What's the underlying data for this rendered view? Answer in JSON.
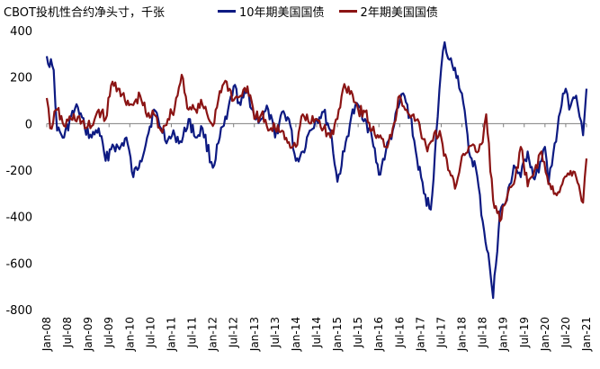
{
  "chart_data": {
    "type": "line",
    "title": "CBOT投机性合约净头寸，千张",
    "ylim": [
      -800,
      400
    ],
    "yticks": [
      400,
      200,
      0,
      -200,
      -400,
      -600,
      -800
    ],
    "x_tick_labels": [
      "Jan-08",
      "Jul-08",
      "Jan-09",
      "Jul-09",
      "Jan-10",
      "Jul-10",
      "Jan-11",
      "Jul-11",
      "Jan-12",
      "Jul-12",
      "Jan-13",
      "Jul-13",
      "Jan-14",
      "Jul-14",
      "Jan-15",
      "Jul-15",
      "Jan-16",
      "Jul-16",
      "Jan-17",
      "Jul-17",
      "Jan-18",
      "Jul-18",
      "Jan-19",
      "Jul-19",
      "Jan-20",
      "Jul-20",
      "Jan-21"
    ],
    "x_range": [
      "2008-01",
      "2021-01"
    ],
    "grid": false,
    "legend_position": "top",
    "series": [
      {
        "name": "10年期美国国债",
        "color": "#0d1a82",
        "points": [
          [
            "2008-01",
            290
          ],
          [
            "2008-03",
            230
          ],
          [
            "2008-04",
            -30
          ],
          [
            "2008-06",
            -60
          ],
          [
            "2008-08",
            30
          ],
          [
            "2008-10",
            70
          ],
          [
            "2008-12",
            -20
          ],
          [
            "2009-02",
            -60
          ],
          [
            "2009-04",
            -20
          ],
          [
            "2009-06",
            -160
          ],
          [
            "2009-08",
            -90
          ],
          [
            "2009-10",
            -110
          ],
          [
            "2009-12",
            -60
          ],
          [
            "2010-02",
            -230
          ],
          [
            "2010-04",
            -160
          ],
          [
            "2010-06",
            -60
          ],
          [
            "2010-08",
            60
          ],
          [
            "2010-10",
            -20
          ],
          [
            "2010-12",
            -70
          ],
          [
            "2011-02",
            -50
          ],
          [
            "2011-04",
            -80
          ],
          [
            "2011-06",
            20
          ],
          [
            "2011-08",
            -60
          ],
          [
            "2011-10",
            -20
          ],
          [
            "2012-01",
            -190
          ],
          [
            "2012-03",
            -60
          ],
          [
            "2012-05",
            20
          ],
          [
            "2012-07",
            160
          ],
          [
            "2012-09",
            80
          ],
          [
            "2012-11",
            140
          ],
          [
            "2013-01",
            30
          ],
          [
            "2013-03",
            20
          ],
          [
            "2013-05",
            60
          ],
          [
            "2013-07",
            -60
          ],
          [
            "2013-09",
            50
          ],
          [
            "2013-11",
            20
          ],
          [
            "2014-01",
            -160
          ],
          [
            "2014-03",
            -120
          ],
          [
            "2014-05",
            -30
          ],
          [
            "2014-07",
            20
          ],
          [
            "2014-09",
            50
          ],
          [
            "2014-11",
            -30
          ],
          [
            "2015-01",
            -250
          ],
          [
            "2015-03",
            -120
          ],
          [
            "2015-05",
            30
          ],
          [
            "2015-07",
            80
          ],
          [
            "2015-09",
            20
          ],
          [
            "2015-11",
            -60
          ],
          [
            "2016-01",
            -220
          ],
          [
            "2016-03",
            -120
          ],
          [
            "2016-05",
            -30
          ],
          [
            "2016-07",
            90
          ],
          [
            "2016-08",
            130
          ],
          [
            "2016-10",
            30
          ],
          [
            "2016-12",
            -150
          ],
          [
            "2017-02",
            -300
          ],
          [
            "2017-04",
            -370
          ],
          [
            "2017-06",
            30
          ],
          [
            "2017-07",
            240
          ],
          [
            "2017-08",
            350
          ],
          [
            "2017-09",
            280
          ],
          [
            "2017-11",
            240
          ],
          [
            "2018-01",
            130
          ],
          [
            "2018-03",
            -120
          ],
          [
            "2018-05",
            -190
          ],
          [
            "2018-07",
            -420
          ],
          [
            "2018-09",
            -610
          ],
          [
            "2018-10",
            -750
          ],
          [
            "2018-12",
            -380
          ],
          [
            "2019-02",
            -330
          ],
          [
            "2019-04",
            -180
          ],
          [
            "2019-06",
            -230
          ],
          [
            "2019-08",
            -120
          ],
          [
            "2019-10",
            -240
          ],
          [
            "2019-12",
            -160
          ],
          [
            "2020-01",
            -100
          ],
          [
            "2020-02",
            -260
          ],
          [
            "2020-03",
            -180
          ],
          [
            "2020-05",
            30
          ],
          [
            "2020-07",
            150
          ],
          [
            "2020-08",
            60
          ],
          [
            "2020-10",
            120
          ],
          [
            "2020-11",
            30
          ],
          [
            "2020-12",
            -50
          ],
          [
            "2021-01",
            150
          ]
        ]
      },
      {
        "name": "2年期美国国债",
        "color": "#8b1414",
        "points": [
          [
            "2008-01",
            110
          ],
          [
            "2008-02",
            -20
          ],
          [
            "2008-04",
            60
          ],
          [
            "2008-06",
            -10
          ],
          [
            "2008-08",
            20
          ],
          [
            "2008-10",
            30
          ],
          [
            "2008-12",
            -20
          ],
          [
            "2009-02",
            -10
          ],
          [
            "2009-04",
            60
          ],
          [
            "2009-06",
            20
          ],
          [
            "2009-08",
            180
          ],
          [
            "2009-10",
            150
          ],
          [
            "2009-12",
            80
          ],
          [
            "2010-02",
            80
          ],
          [
            "2010-04",
            120
          ],
          [
            "2010-06",
            30
          ],
          [
            "2010-08",
            40
          ],
          [
            "2010-10",
            -30
          ],
          [
            "2010-12",
            20
          ],
          [
            "2011-02",
            70
          ],
          [
            "2011-04",
            210
          ],
          [
            "2011-06",
            60
          ],
          [
            "2011-08",
            60
          ],
          [
            "2011-10",
            80
          ],
          [
            "2012-01",
            -10
          ],
          [
            "2012-03",
            140
          ],
          [
            "2012-05",
            180
          ],
          [
            "2012-07",
            100
          ],
          [
            "2012-09",
            120
          ],
          [
            "2012-11",
            160
          ],
          [
            "2013-01",
            20
          ],
          [
            "2013-03",
            40
          ],
          [
            "2013-05",
            -30
          ],
          [
            "2013-07",
            -20
          ],
          [
            "2013-09",
            -30
          ],
          [
            "2013-11",
            -80
          ],
          [
            "2014-01",
            -100
          ],
          [
            "2014-03",
            40
          ],
          [
            "2014-05",
            0
          ],
          [
            "2014-07",
            20
          ],
          [
            "2014-09",
            -20
          ],
          [
            "2014-11",
            -60
          ],
          [
            "2015-01",
            20
          ],
          [
            "2015-03",
            170
          ],
          [
            "2015-05",
            140
          ],
          [
            "2015-07",
            60
          ],
          [
            "2015-09",
            50
          ],
          [
            "2015-11",
            -30
          ],
          [
            "2016-01",
            -60
          ],
          [
            "2016-03",
            -100
          ],
          [
            "2016-05",
            -20
          ],
          [
            "2016-07",
            120
          ],
          [
            "2016-09",
            60
          ],
          [
            "2016-11",
            40
          ],
          [
            "2017-01",
            -30
          ],
          [
            "2017-03",
            -120
          ],
          [
            "2017-05",
            -40
          ],
          [
            "2017-07",
            -60
          ],
          [
            "2017-09",
            -200
          ],
          [
            "2017-11",
            -280
          ],
          [
            "2018-01",
            -140
          ],
          [
            "2018-03",
            -100
          ],
          [
            "2018-05",
            -120
          ],
          [
            "2018-07",
            -80
          ],
          [
            "2018-08",
            40
          ],
          [
            "2018-10",
            -330
          ],
          [
            "2018-12",
            -420
          ],
          [
            "2019-02",
            -320
          ],
          [
            "2019-04",
            -260
          ],
          [
            "2019-06",
            -100
          ],
          [
            "2019-08",
            -270
          ],
          [
            "2019-10",
            -200
          ],
          [
            "2019-12",
            -120
          ],
          [
            "2020-02",
            -260
          ],
          [
            "2020-04",
            -300
          ],
          [
            "2020-06",
            -260
          ],
          [
            "2020-08",
            -220
          ],
          [
            "2020-10",
            -230
          ],
          [
            "2020-12",
            -340
          ],
          [
            "2021-01",
            -150
          ]
        ]
      }
    ]
  }
}
